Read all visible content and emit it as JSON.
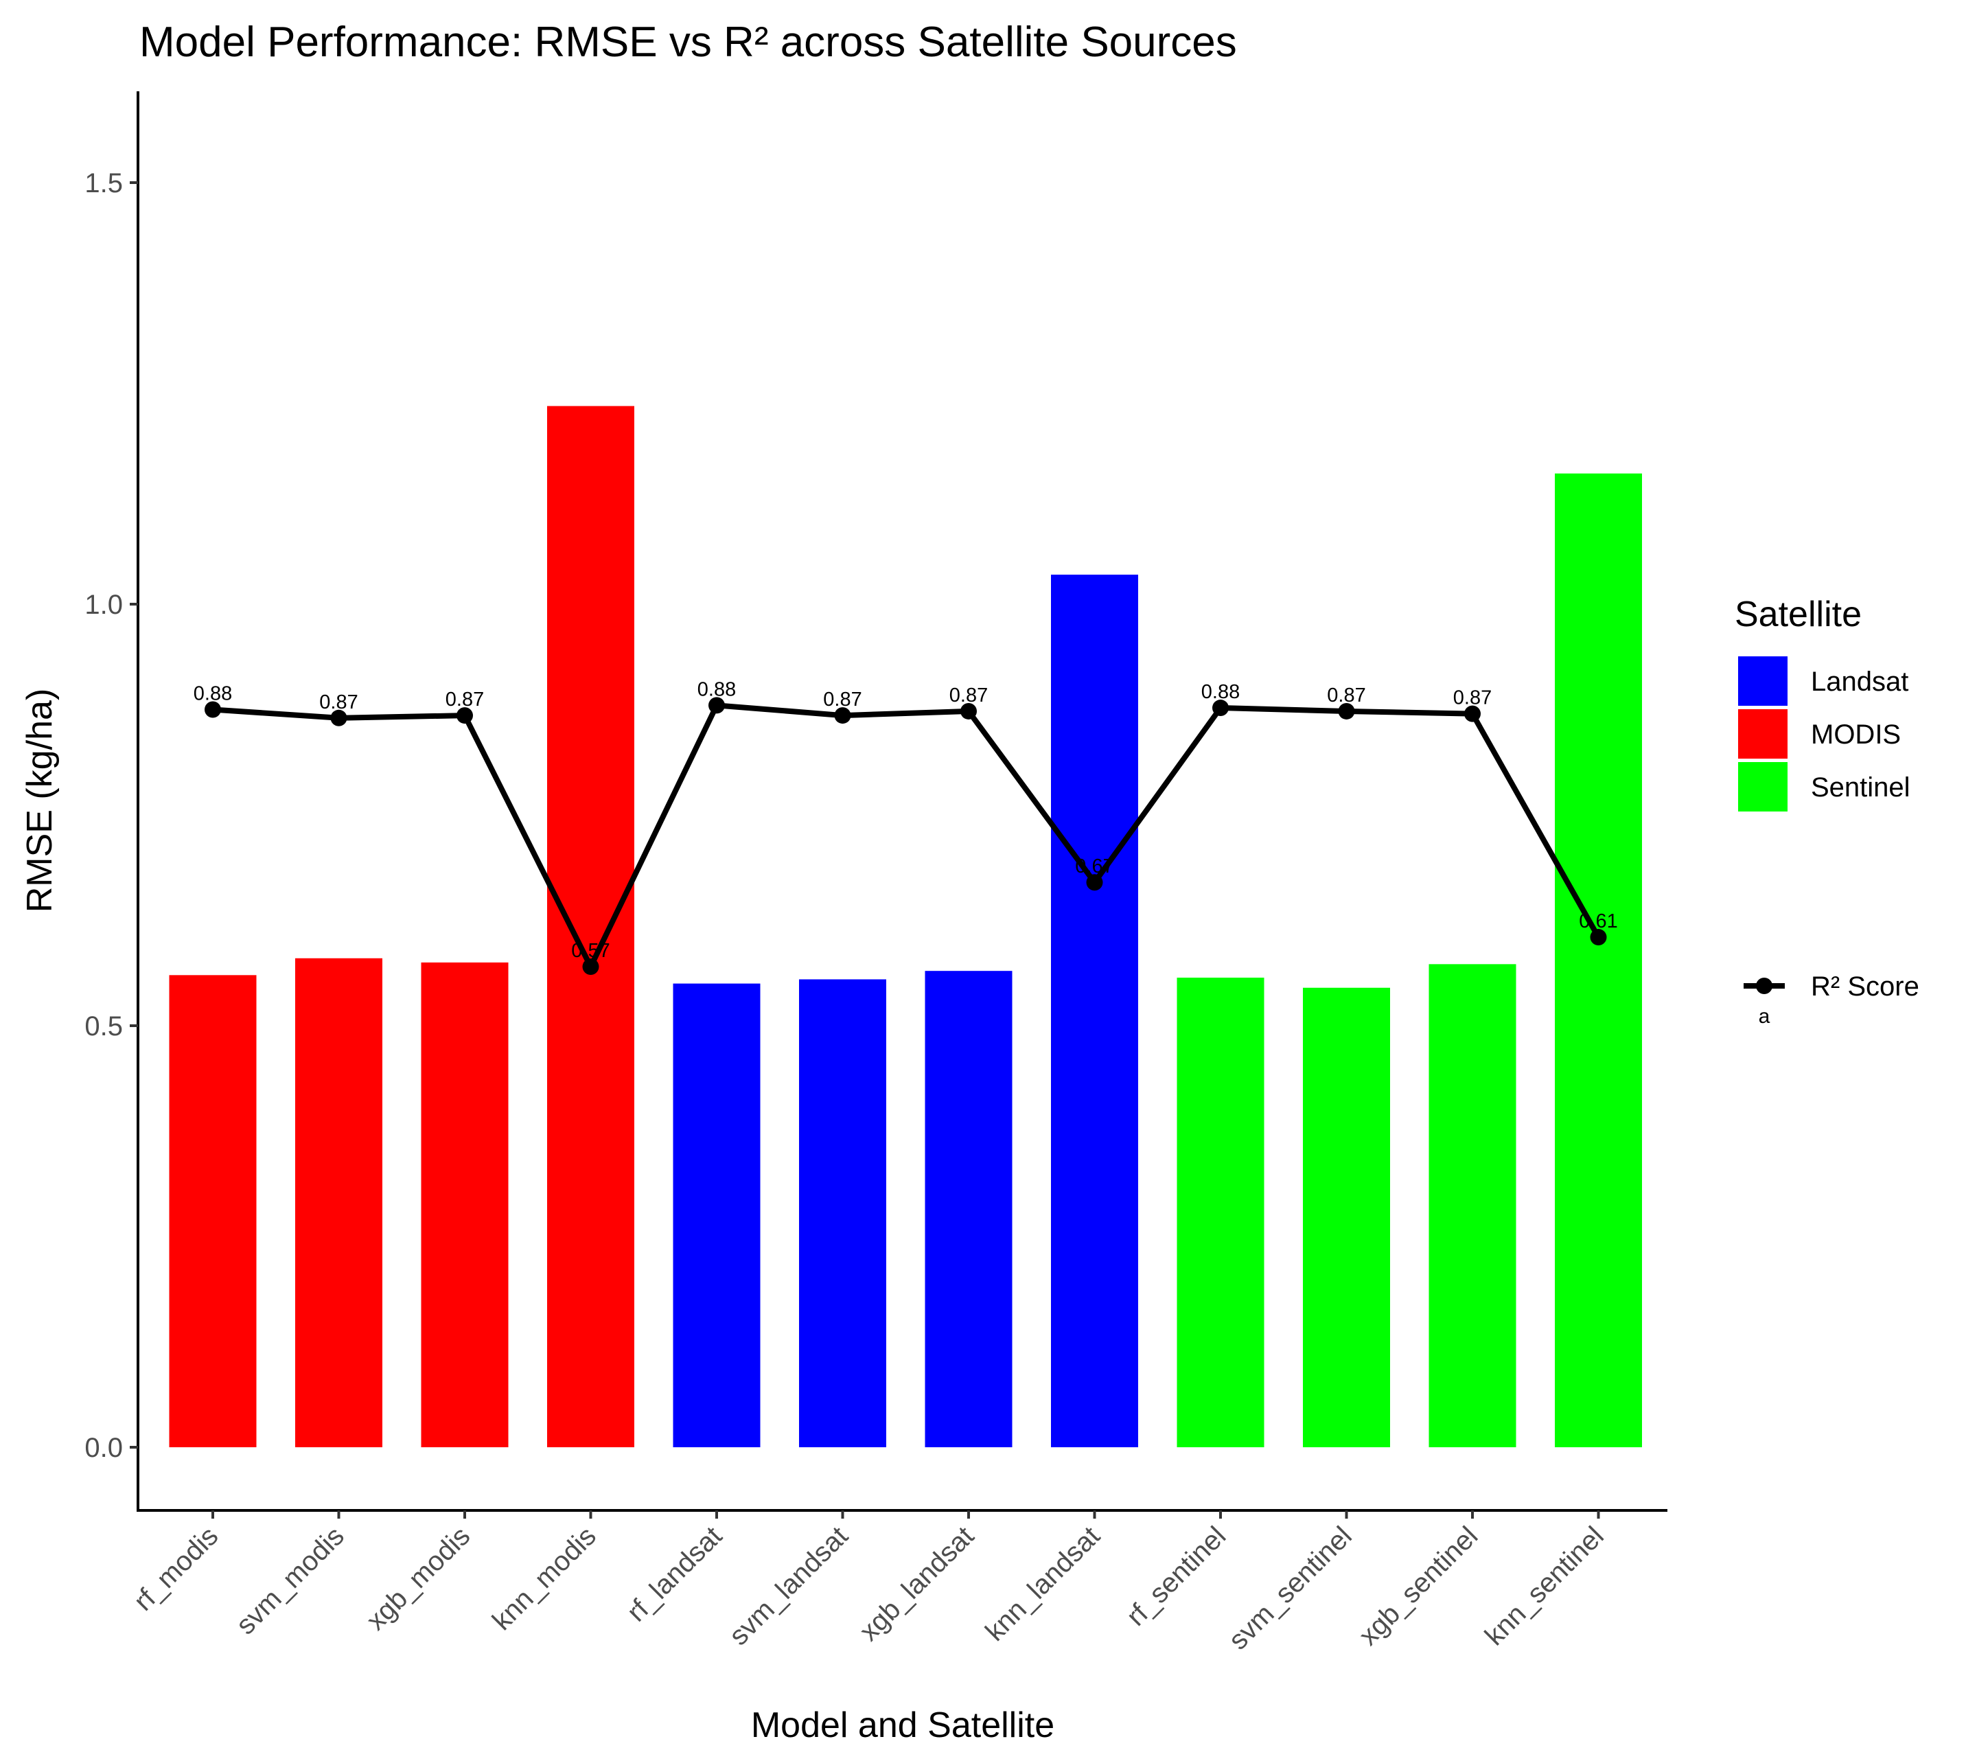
{
  "chart_data": {
    "type": "bar",
    "title": "Model Performance: RMSE vs R² across Satellite Sources",
    "xlabel": "Model and Satellite",
    "ylabel": "RMSE (kg/ha)",
    "ylim": [
      -0.08,
      1.61
    ],
    "yticks": [
      0.0,
      0.5,
      1.0,
      1.5
    ],
    "ytick_labels": [
      "0.0",
      "0.5",
      "1.0",
      "1.5"
    ],
    "grid": false,
    "legend_position": "right",
    "categories": [
      "rf_modis",
      "svm_modis",
      "xgb_modis",
      "knn_modis",
      "rf_landsat",
      "svm_landsat",
      "xgb_landsat",
      "knn_landsat",
      "rf_sentinel",
      "svm_sentinel",
      "xgb_sentinel",
      "knn_sentinel"
    ],
    "series": [
      {
        "kind": "bar",
        "name": "Satellite",
        "values": [
          0.56,
          0.58,
          0.575,
          1.235,
          0.55,
          0.555,
          0.565,
          1.035,
          0.557,
          0.545,
          0.573,
          1.155
        ],
        "groups": [
          "MODIS",
          "MODIS",
          "MODIS",
          "MODIS",
          "Landsat",
          "Landsat",
          "Landsat",
          "Landsat",
          "Sentinel",
          "Sentinel",
          "Sentinel",
          "Sentinel"
        ]
      },
      {
        "kind": "line",
        "name": "R² Score",
        "values": [
          0.875,
          0.865,
          0.868,
          0.57,
          0.88,
          0.868,
          0.873,
          0.67,
          0.877,
          0.873,
          0.87,
          0.605
        ],
        "labels": [
          "0.88",
          "0.87",
          "0.87",
          "0.57",
          "0.88",
          "0.87",
          "0.87",
          "0.67",
          "0.88",
          "0.87",
          "0.87",
          "0.61"
        ]
      }
    ],
    "legend": {
      "title": "Satellite",
      "entries": [
        {
          "label": "Landsat",
          "color": "#0000ff"
        },
        {
          "label": "MODIS",
          "color": "#ff0000"
        },
        {
          "label": "Sentinel",
          "color": "#00ff00"
        }
      ],
      "line_entry": {
        "label": "R² Score",
        "sublabel": "a",
        "color": "#000000"
      }
    },
    "colors": {
      "MODIS": "#ff0000",
      "Landsat": "#0000ff",
      "Sentinel": "#00ff00",
      "line": "#000000"
    }
  }
}
